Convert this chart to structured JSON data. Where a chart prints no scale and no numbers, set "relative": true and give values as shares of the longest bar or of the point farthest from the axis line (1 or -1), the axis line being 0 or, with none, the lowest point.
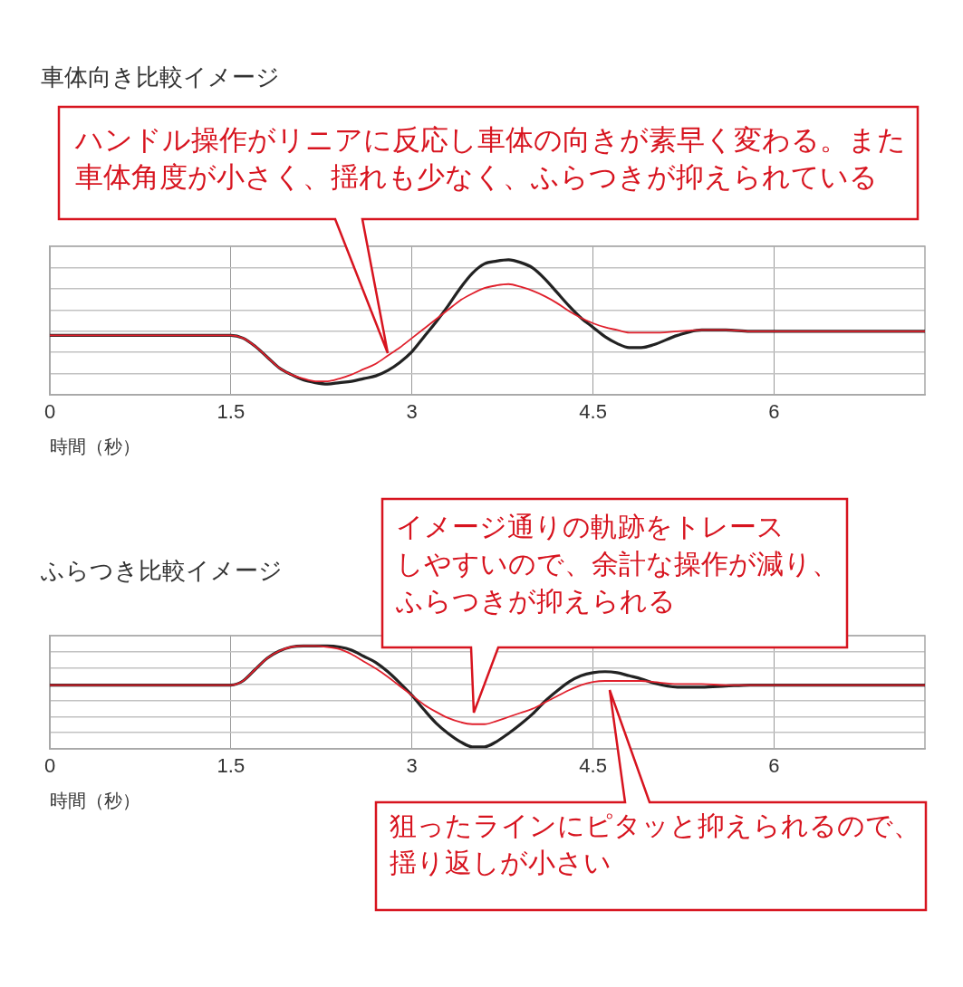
{
  "chart_data": [
    {
      "type": "line",
      "title": "車体向き比較イメージ",
      "xlabel": "時間（秒）",
      "relative": true,
      "grid": true,
      "marker": "none",
      "x": [
        0,
        1.5,
        1.6,
        1.7,
        1.8,
        1.9,
        2.0,
        2.1,
        2.2,
        2.3,
        2.4,
        2.5,
        2.6,
        2.7,
        2.8,
        2.9,
        3.0,
        3.1,
        3.2,
        3.3,
        3.4,
        3.5,
        3.6,
        3.7,
        3.8,
        3.9,
        4.0,
        4.1,
        4.2,
        4.3,
        4.4,
        4.5,
        4.6,
        4.7,
        4.8,
        4.9,
        5.0,
        5.2,
        5.4,
        5.6,
        5.8,
        6.0,
        6.5,
        7.25
      ],
      "xlim": [
        0,
        7.25
      ],
      "xticks": [
        0,
        1.5,
        3,
        4.5,
        6
      ],
      "series": [
        {
          "color": "#222222",
          "values": [
            0.44,
            0.44,
            0.42,
            0.36,
            0.28,
            0.2,
            0.15,
            0.11,
            0.09,
            0.08,
            0.09,
            0.1,
            0.12,
            0.14,
            0.18,
            0.24,
            0.32,
            0.43,
            0.54,
            0.66,
            0.79,
            0.9,
            0.97,
            0.99,
            1,
            0.98,
            0.94,
            0.86,
            0.76,
            0.66,
            0.57,
            0.5,
            0.43,
            0.38,
            0.35,
            0.35,
            0.37,
            0.44,
            0.48,
            0.48,
            0.47,
            0.47,
            0.47,
            0.47
          ]
        },
        {
          "color": "#e0202c",
          "values": [
            0.44,
            0.44,
            0.42,
            0.36,
            0.28,
            0.2,
            0.15,
            0.12,
            0.1,
            0.1,
            0.12,
            0.15,
            0.19,
            0.23,
            0.29,
            0.35,
            0.42,
            0.49,
            0.56,
            0.63,
            0.7,
            0.75,
            0.79,
            0.81,
            0.82,
            0.8,
            0.77,
            0.73,
            0.68,
            0.62,
            0.57,
            0.53,
            0.5,
            0.48,
            0.46,
            0.46,
            0.46,
            0.47,
            0.48,
            0.48,
            0.47,
            0.47,
            0.47,
            0.47
          ]
        }
      ],
      "annotations": [
        "ハンドル操作がリニアに反応し車体の向きが素早く変わる。また車体角度が小さく、揺れも少なく、ふらつきが抑えられている"
      ]
    },
    {
      "type": "line",
      "title": "ふらつき比較イメージ",
      "xlabel": "時間（秒）",
      "relative": true,
      "grid": true,
      "marker": "none",
      "x": [
        0,
        1.5,
        1.6,
        1.7,
        1.8,
        1.9,
        2.0,
        2.1,
        2.2,
        2.3,
        2.4,
        2.5,
        2.6,
        2.7,
        2.8,
        2.9,
        3.0,
        3.1,
        3.2,
        3.3,
        3.4,
        3.5,
        3.6,
        3.7,
        3.8,
        3.9,
        4.0,
        4.1,
        4.2,
        4.3,
        4.4,
        4.5,
        4.6,
        4.7,
        4.8,
        4.9,
        5.0,
        5.2,
        5.4,
        5.6,
        5.8,
        6.0,
        6.5,
        7.25
      ],
      "xlim": [
        0,
        7.25
      ],
      "xticks": [
        0,
        1.5,
        3,
        4.5,
        6
      ],
      "series": [
        {
          "color": "#222222",
          "values": [
            0.62,
            0.62,
            0.66,
            0.77,
            0.88,
            0.95,
            0.99,
            1,
            1,
            1,
            0.99,
            0.96,
            0.9,
            0.84,
            0.75,
            0.64,
            0.52,
            0.38,
            0.25,
            0.15,
            0.07,
            0.02,
            0.02,
            0.07,
            0.15,
            0.24,
            0.34,
            0.46,
            0.56,
            0.65,
            0.71,
            0.74,
            0.75,
            0.74,
            0.71,
            0.68,
            0.64,
            0.6,
            0.6,
            0.61,
            0.62,
            0.62,
            0.62,
            0.62
          ]
        },
        {
          "color": "#e0202c",
          "values": [
            0.62,
            0.62,
            0.66,
            0.77,
            0.88,
            0.95,
            0.99,
            1,
            1,
            0.99,
            0.97,
            0.92,
            0.85,
            0.78,
            0.7,
            0.61,
            0.52,
            0.43,
            0.36,
            0.3,
            0.26,
            0.24,
            0.24,
            0.27,
            0.31,
            0.35,
            0.39,
            0.45,
            0.51,
            0.57,
            0.62,
            0.65,
            0.66,
            0.66,
            0.66,
            0.66,
            0.65,
            0.63,
            0.63,
            0.62,
            0.62,
            0.62,
            0.62,
            0.62
          ]
        }
      ],
      "annotations": [
        "イメージ通りの軌跡をトレースしやすいので、余計な操作が減り、ふらつきが抑えられる",
        "狙ったラインにピタッと抑えられるので、揺り返しが小さい"
      ]
    }
  ]
}
